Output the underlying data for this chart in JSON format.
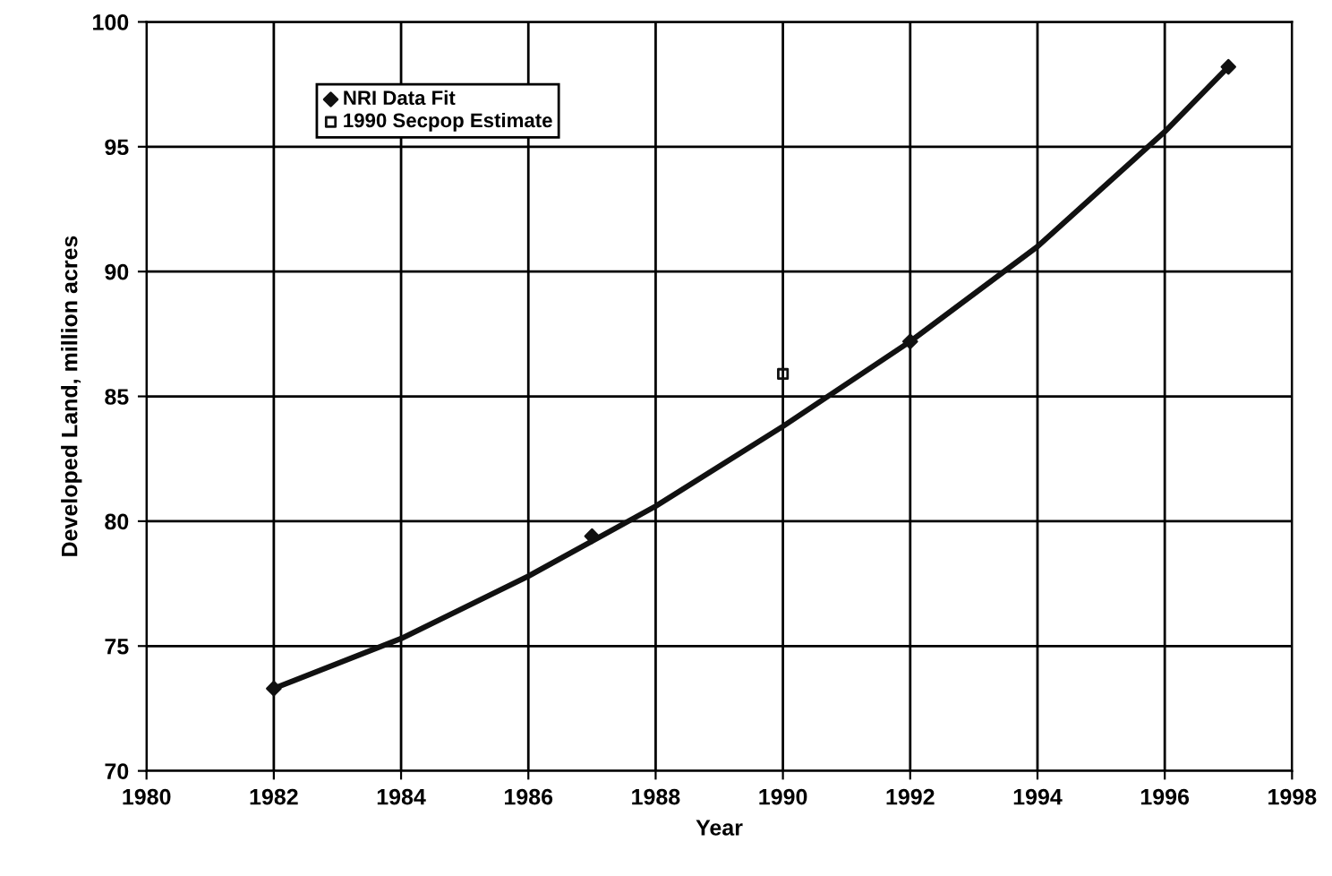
{
  "chart_data": {
    "type": "line",
    "xlabel": "Year",
    "ylabel": "Developed Land, million acres",
    "xlim": [
      1980,
      1998
    ],
    "xticks": [
      1980,
      1982,
      1984,
      1986,
      1988,
      1990,
      1992,
      1994,
      1996,
      1998
    ],
    "ylim": [
      70,
      100
    ],
    "yticks": [
      70,
      75,
      80,
      85,
      90,
      95,
      100
    ],
    "grid": true,
    "legend": "top left",
    "series": [
      {
        "color": "#111111",
        "x": [
          1982,
          1984,
          1986,
          1988,
          1990,
          1992,
          1994,
          1996,
          1997
        ],
        "values": [
          73.3,
          75.3,
          77.8,
          80.6,
          83.8,
          87.2,
          91.0,
          95.6,
          98.2
        ],
        "line_style": "solid",
        "marker": "none"
      },
      {
        "type": "scatter",
        "name": "NRI Data Fit",
        "color": "#111111",
        "x": [
          1982,
          1987,
          1992,
          1997
        ],
        "values": [
          73.3,
          79.4,
          87.2,
          98.2
        ],
        "marker": "diamond"
      },
      {
        "type": "scatter",
        "name": "1990 Secpop Estimate",
        "color": "#111111",
        "x": [
          1990
        ],
        "values": [
          85.9
        ],
        "marker": "square"
      }
    ]
  }
}
